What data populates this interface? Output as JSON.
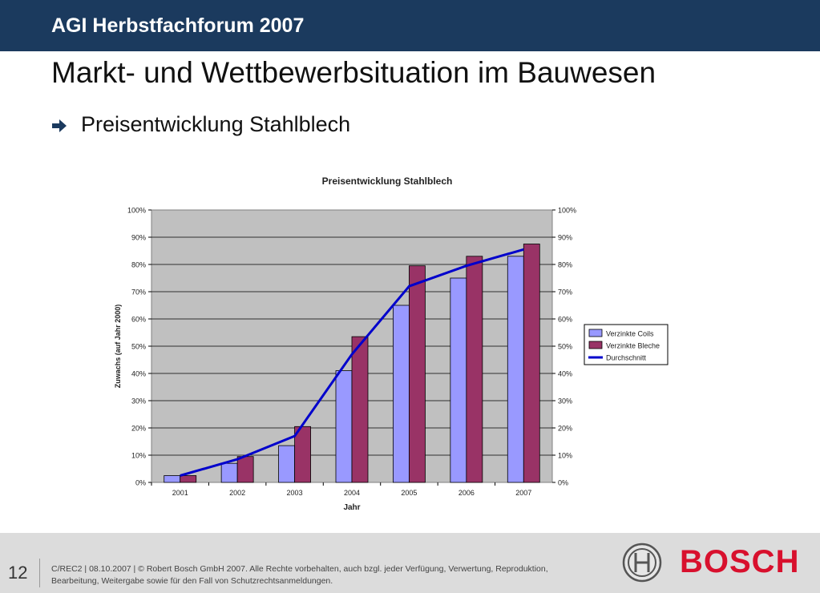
{
  "header": {
    "title": "AGI Herbstfachforum 2007"
  },
  "slide": {
    "title": "Markt- und Wettbewerbsituation im Bauwesen",
    "bullet": "Preisentwicklung Stahlblech"
  },
  "chart_data": {
    "type": "bar",
    "title": "Preisentwicklung  Stahlblech",
    "xlabel": "Jahr",
    "ylabel": "Zuwachs (auf Jahr 2000)",
    "categories": [
      "2001",
      "2002",
      "2003",
      "2004",
      "2005",
      "2006",
      "2007"
    ],
    "ylim": [
      0,
      100
    ],
    "yticks": [
      "0%",
      "10%",
      "20%",
      "30%",
      "40%",
      "50%",
      "60%",
      "70%",
      "80%",
      "90%",
      "100%"
    ],
    "y2ticks": [
      "0%",
      "10%",
      "20%",
      "30%",
      "40%",
      "50%",
      "60%",
      "70%",
      "80%",
      "90%",
      "100%"
    ],
    "grid": true,
    "legend_position": "right",
    "series": [
      {
        "name": "Verzinkte Coils",
        "kind": "bar",
        "color": "#9999ff",
        "values": [
          2.5,
          7,
          13.5,
          41,
          65,
          75,
          83
        ]
      },
      {
        "name": "Verzinkte Bleche",
        "kind": "bar",
        "color": "#993366",
        "values": [
          2.5,
          9.5,
          20.5,
          53.5,
          79.5,
          83,
          87.5
        ]
      },
      {
        "name": "Durchschnitt",
        "kind": "line",
        "color": "#0000cc",
        "values": [
          2.5,
          8.5,
          17,
          47,
          72,
          79.5,
          85.5
        ]
      }
    ],
    "plot_background": "#c0c0c0"
  },
  "footer": {
    "page_number": "12",
    "text": "C/REC2 | 08.10.2007 | © Robert Bosch GmbH 2007. Alle Rechte vorbehalten, auch bzgl. jeder Verfügung, Verwertung, Reproduktion, Bearbeitung, Weitergabe sowie für den Fall von Schutzrechtsanmeldungen.",
    "brand": "BOSCH"
  },
  "colors": {
    "header_bg": "#1b3a5e",
    "footer_bg": "#dcdcdc",
    "brand_red": "#d8102d"
  },
  "icons": {
    "bullet": "arrow-right-icon",
    "logo": "bosch-emblem-icon"
  }
}
